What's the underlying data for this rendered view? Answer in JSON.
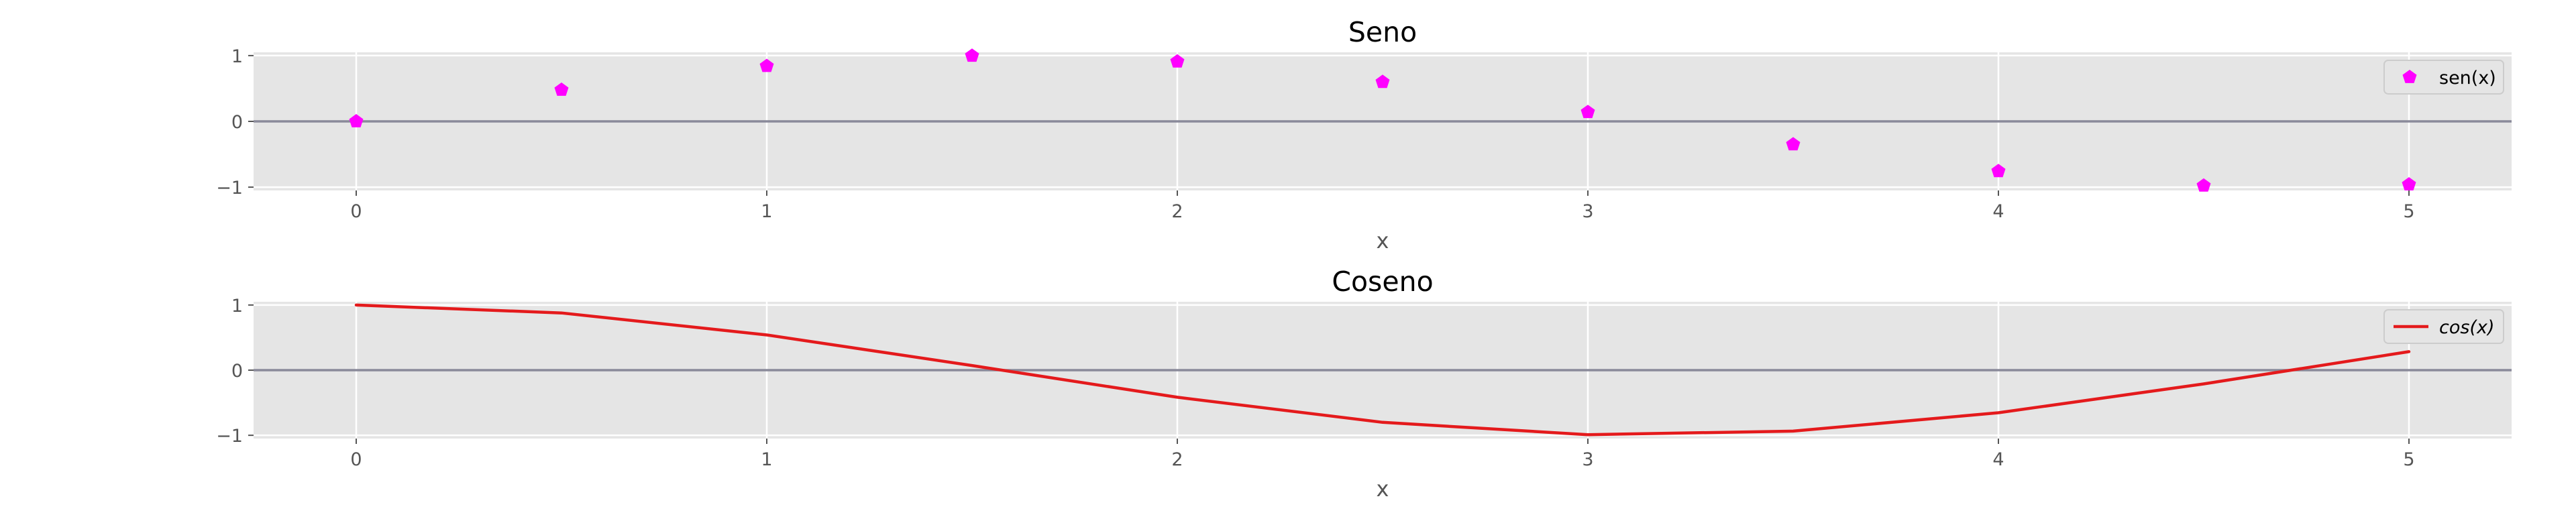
{
  "chart_data": [
    {
      "type": "scatter",
      "title": "Seno",
      "xlabel": "x",
      "ylabel": "",
      "xlim": [
        -0.25,
        5.25
      ],
      "ylim": [
        -1.05,
        1.05
      ],
      "xticks": [
        "0",
        "1",
        "2",
        "3",
        "4",
        "5"
      ],
      "yticks": [
        "1",
        "0",
        "−1"
      ],
      "grid": true,
      "zero_line": true,
      "legend_position": "top-right",
      "marker": "pentagon",
      "color": "#ff00ff",
      "series": [
        {
          "name": "sen(x)",
          "x": [
            0,
            0.5,
            1,
            1.5,
            2,
            2.5,
            3,
            3.5,
            4,
            4.5,
            5
          ],
          "y": [
            0.0,
            0.479,
            0.841,
            0.997,
            0.909,
            0.598,
            0.141,
            -0.351,
            -0.757,
            -0.978,
            -0.959
          ]
        }
      ]
    },
    {
      "type": "line",
      "title": "Coseno",
      "xlabel": "x",
      "ylabel": "",
      "xlim": [
        -0.25,
        5.25
      ],
      "ylim": [
        -1.05,
        1.05
      ],
      "xticks": [
        "0",
        "1",
        "2",
        "3",
        "4",
        "5"
      ],
      "yticks": [
        "1",
        "0",
        "−1"
      ],
      "grid": true,
      "zero_line": true,
      "legend_position": "top-right",
      "color": "#e41a1c",
      "series": [
        {
          "name": "cos(x)",
          "x": [
            0,
            0.5,
            1,
            1.5,
            2,
            2.5,
            3,
            3.5,
            4,
            4.5,
            5
          ],
          "y": [
            1.0,
            0.878,
            0.54,
            0.071,
            -0.416,
            -0.801,
            -0.99,
            -0.936,
            -0.654,
            -0.211,
            0.284
          ]
        }
      ]
    }
  ]
}
